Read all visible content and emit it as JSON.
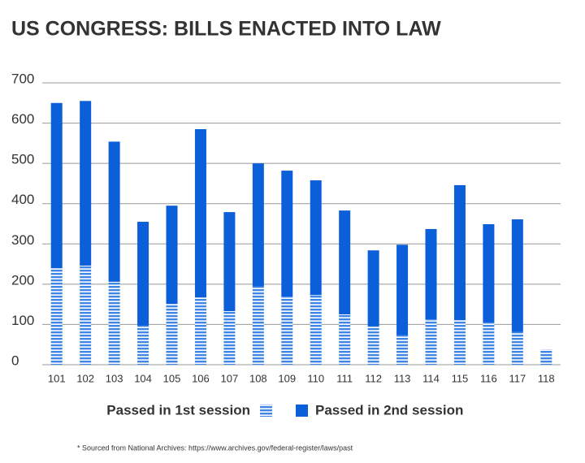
{
  "chart_data": {
    "type": "stacked-bar",
    "title": "US CONGRESS: BILLS ENACTED INTO LAW",
    "categories": [
      "101",
      "102",
      "103",
      "104",
      "105",
      "106",
      "107",
      "108",
      "109",
      "110",
      "111",
      "112",
      "113",
      "114",
      "115",
      "116",
      "117",
      "118"
    ],
    "series": [
      {
        "name": "Passed in 1st session",
        "color": "#3f86e6",
        "pattern": "horizontal-stripes",
        "values": [
          240,
          246,
          206,
          97,
          151,
          167,
          133,
          194,
          169,
          173,
          125,
          95,
          73,
          113,
          111,
          105,
          81,
          38
        ]
      },
      {
        "name": "Passed in 2nd session",
        "color": "#0b5fd9",
        "values": [
          410,
          409,
          348,
          258,
          244,
          418,
          246,
          306,
          313,
          285,
          258,
          189,
          225,
          224,
          335,
          244,
          280,
          null
        ]
      }
    ],
    "ylim": [
      0,
      700
    ],
    "yticks": [
      0,
      100,
      200,
      300,
      400,
      500,
      600,
      700
    ],
    "grid": true,
    "note": "* Sourced from National Archives: https://www.archives.gov/federal-register/laws/past"
  }
}
